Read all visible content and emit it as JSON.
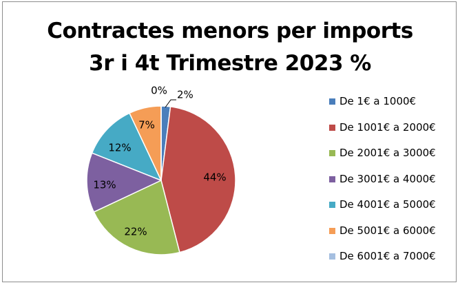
{
  "chart_data": {
    "type": "pie",
    "title": [
      "Contractes menors per imports",
      "3r i 4t Trimestre 2023 %"
    ],
    "categories": [
      "De 1€ a 1000€",
      "De 1001€ a 2000€",
      "De 2001€ a 3000€",
      "De 3001€ a 4000€",
      "De 4001€ a 5000€",
      "De 5001€ a 6000€",
      "De 6001€ a 7000€"
    ],
    "values": [
      2,
      44,
      22,
      13,
      12,
      7,
      0
    ],
    "data_labels": [
      "2%",
      "44%",
      "22%",
      "13%",
      "12%",
      "7%",
      "0%"
    ],
    "colors": [
      "#4a7ebb",
      "#be4b48",
      "#98b954",
      "#7d60a0",
      "#46aac5",
      "#f59d56",
      "#a5bfe0"
    ],
    "legend_position": "right"
  }
}
